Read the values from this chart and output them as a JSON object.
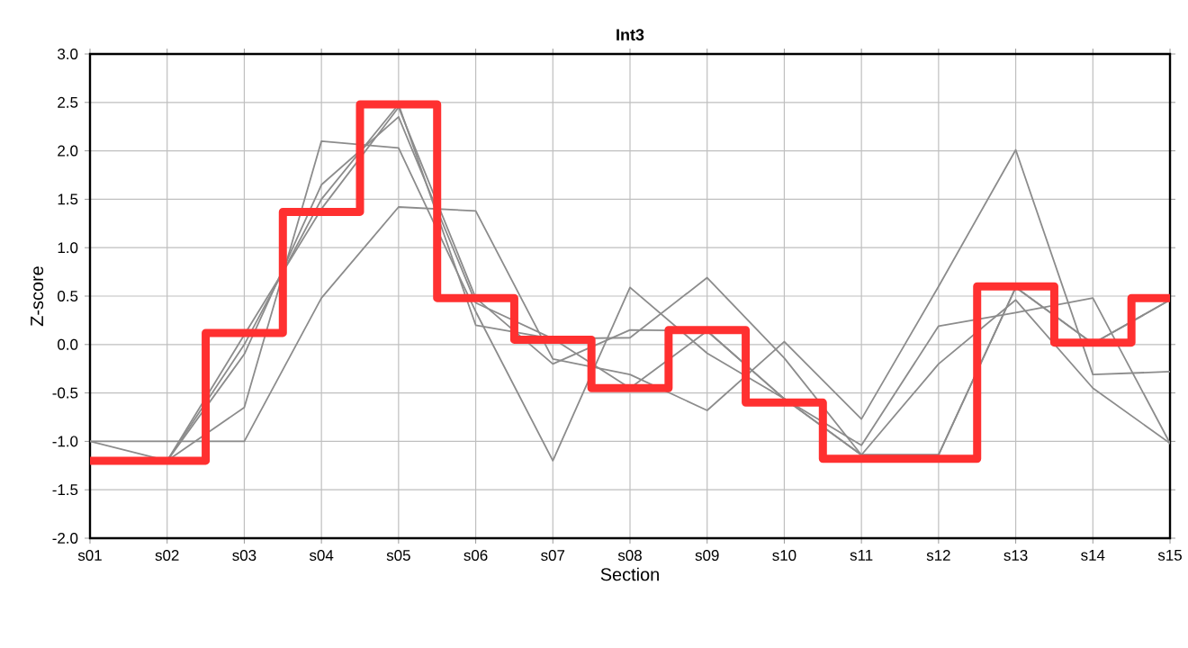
{
  "chart_data": {
    "type": "line",
    "title": "Int3",
    "xlabel": "Section",
    "ylabel": "Z-score",
    "categories": [
      "s01",
      "s02",
      "s03",
      "s04",
      "s05",
      "s06",
      "s07",
      "s08",
      "s09",
      "s10",
      "s11",
      "s12",
      "s13",
      "s14",
      "s15"
    ],
    "series": [
      {
        "color": "#8c8c8c",
        "values": [
          -1.0,
          -1.0,
          -1.0,
          0.48,
          1.42,
          1.38,
          -0.15,
          -0.31,
          -0.68,
          0.03,
          -0.77,
          0.6,
          2.01,
          -0.31,
          -0.28
        ]
      },
      {
        "color": "#8c8c8c",
        "values": [
          -1.0,
          -1.2,
          -0.65,
          2.1,
          2.03,
          0.34,
          -1.2,
          0.59,
          -0.09,
          -0.56,
          -1.04,
          0.19,
          0.33,
          0.48,
          -1.02
        ]
      },
      {
        "color": "#8c8c8c",
        "values": [
          -1.2,
          -1.2,
          -0.1,
          1.65,
          2.35,
          0.43,
          0.06,
          0.07,
          0.69,
          -0.14,
          -1.14,
          -0.2,
          0.46,
          -0.45,
          -1.02
        ]
      },
      {
        "color": "#8c8c8c",
        "values": [
          -1.2,
          -1.2,
          0.1,
          1.4,
          2.45,
          0.48,
          -0.2,
          0.15,
          0.14,
          -0.56,
          -1.14,
          -1.14,
          0.59,
          0.01,
          0.46
        ]
      },
      {
        "color": "#8c8c8c",
        "values": [
          -1.2,
          -1.2,
          0.0,
          1.5,
          2.48,
          0.2,
          0.06,
          -0.45,
          0.14,
          -0.56,
          -1.14,
          -1.14,
          0.59,
          0.01,
          0.46
        ]
      },
      {
        "type": "step",
        "color": "#ff3030",
        "values": [
          -1.2,
          -1.2,
          0.12,
          1.37,
          2.48,
          0.48,
          0.05,
          -0.45,
          0.15,
          -0.6,
          -1.18,
          -1.18,
          0.6,
          0.02,
          0.48
        ]
      }
    ],
    "ylim": [
      -2.0,
      3.0
    ],
    "yticks": [
      {
        "value": -2.0,
        "label": "-2.0"
      },
      {
        "value": -1.5,
        "label": "-1.5"
      },
      {
        "value": -1.0,
        "label": "-1.0"
      },
      {
        "value": -0.5,
        "label": "-0.5"
      },
      {
        "value": 0.0,
        "label": "0.0"
      },
      {
        "value": 0.5,
        "label": "0.5"
      },
      {
        "value": 1.0,
        "label": "1.0"
      },
      {
        "value": 1.5,
        "label": "1.5"
      },
      {
        "value": 2.0,
        "label": "2.0"
      },
      {
        "value": 2.5,
        "label": "2.5"
      },
      {
        "value": 3.0,
        "label": "3.0"
      }
    ],
    "grid": true,
    "marker": "none",
    "line_style": "solid"
  }
}
